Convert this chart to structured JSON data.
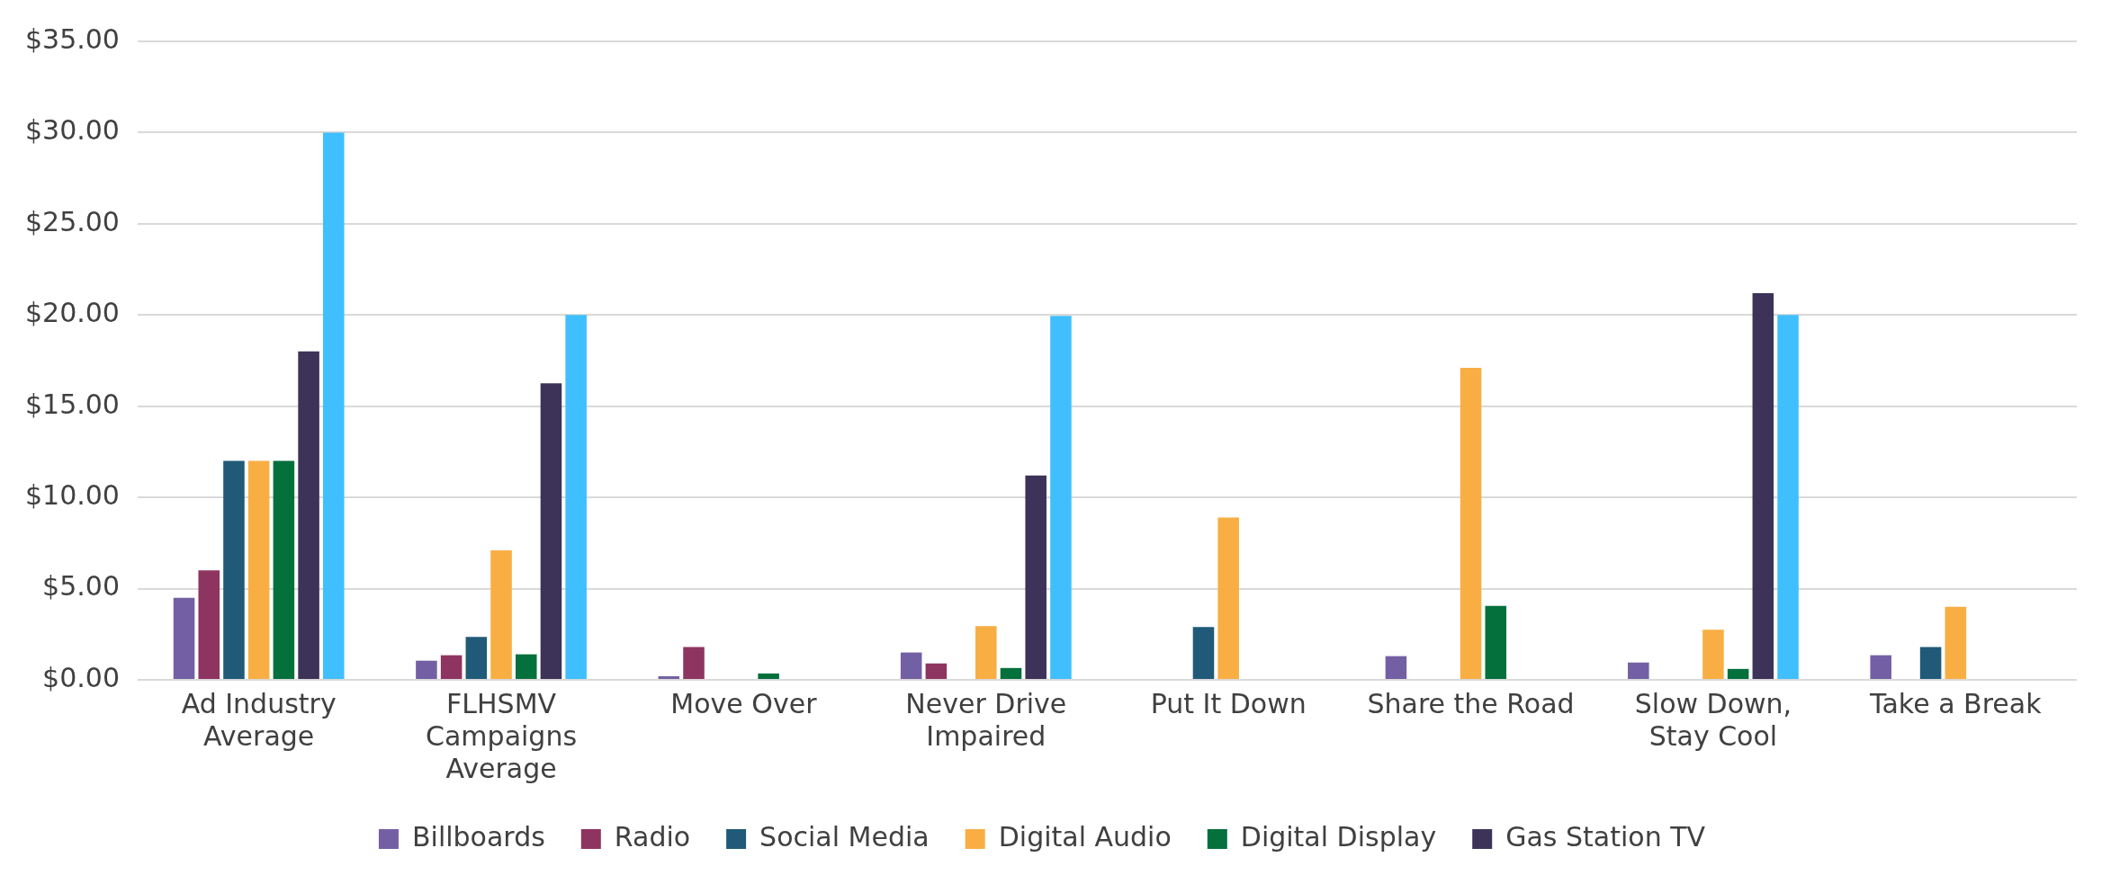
{
  "chart_data": {
    "type": "bar",
    "categories": [
      "Ad Industry\nAverage",
      "FLHSMV\nCampaigns\nAverage",
      "Move Over",
      "Never Drive\nImpaired",
      "Put It Down",
      "Share the Road",
      "Slow Down,\nStay Cool",
      "Take a Break"
    ],
    "series": [
      {
        "name": "Billboards",
        "color": "#7360a4",
        "values": [
          4.5,
          1.05,
          0.2,
          1.5,
          null,
          1.3,
          0.95,
          1.35
        ]
      },
      {
        "name": "Radio",
        "color": "#8e3460",
        "values": [
          6.0,
          1.35,
          1.8,
          0.9,
          null,
          null,
          null,
          null
        ]
      },
      {
        "name": "Social Media",
        "color": "#205a78",
        "values": [
          12.0,
          2.35,
          null,
          null,
          2.9,
          null,
          null,
          1.8
        ]
      },
      {
        "name": "Digital Audio",
        "color": "#f9ae43",
        "values": [
          12.0,
          7.1,
          null,
          2.95,
          8.9,
          17.1,
          2.75,
          4.0
        ]
      },
      {
        "name": "Digital Display",
        "color": "#04703c",
        "values": [
          12.0,
          1.4,
          0.35,
          0.65,
          null,
          4.05,
          0.6,
          null
        ]
      },
      {
        "name": "Gas Station TV",
        "color": "#3d3359",
        "values": [
          18.0,
          16.25,
          null,
          11.2,
          null,
          null,
          21.2,
          null
        ]
      },
      {
        "color": "#40bfff",
        "values": [
          30.0,
          20.0,
          null,
          19.95,
          null,
          null,
          20.0,
          null
        ]
      }
    ],
    "ylim": [
      0,
      35
    ],
    "yticks": [
      {
        "value": 0,
        "label": "$0.00"
      },
      {
        "value": 5,
        "label": "$5.00"
      },
      {
        "value": 10,
        "label": "$10.00"
      },
      {
        "value": 15,
        "label": "$15.00"
      },
      {
        "value": 20,
        "label": "$20.00"
      },
      {
        "value": 25,
        "label": "$25.00"
      },
      {
        "value": 30,
        "label": "$30.00"
      },
      {
        "value": 35,
        "label": "$35.00"
      }
    ],
    "grid": "y",
    "legend": "bottom"
  }
}
